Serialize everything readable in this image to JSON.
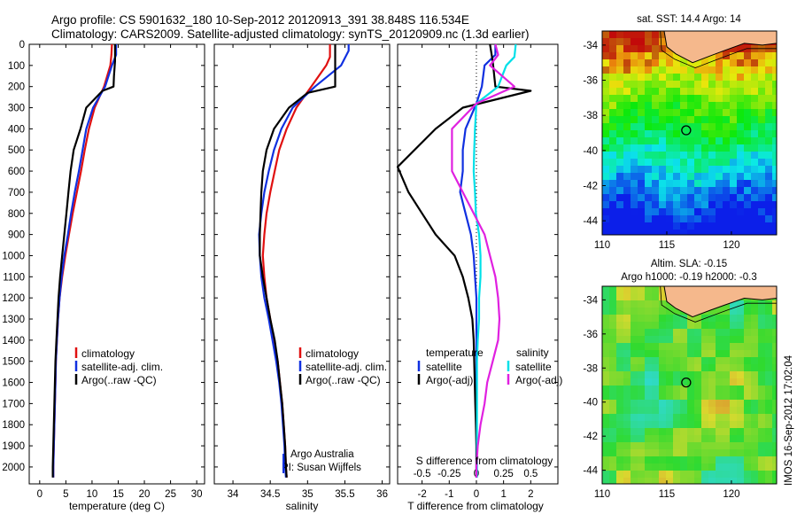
{
  "header": {
    "line1": "Argo profile: CS 5901632_180 10-Sep-2012 20120913_391 38.848S 116.534E",
    "line2": "Climatology: CARS2009. Satellite-adjusted climatology: synTS_20120909.nc (1.3d earlier)"
  },
  "colors": {
    "clim": "#e01010",
    "sat": "#1030e0",
    "argo": "#000000",
    "sat_s": "#00e0e8",
    "argo_s": "#e020e0"
  },
  "chart_data": [
    {
      "type": "line",
      "xlabel": "temperature (deg C)",
      "ylabel": "",
      "xlim": [
        -2,
        31.5
      ],
      "ylim": [
        2080,
        0
      ],
      "xticks": [
        0,
        5,
        10,
        15,
        20,
        25,
        30
      ],
      "yticks": [
        0,
        100,
        200,
        300,
        400,
        500,
        600,
        700,
        800,
        900,
        1000,
        1100,
        1200,
        1300,
        1400,
        1500,
        1600,
        1700,
        1800,
        1900,
        2000
      ],
      "legend": [
        "climatology",
        "satellite-adj. clim.",
        "Argo(..raw -QC)"
      ],
      "series": [
        {
          "name": "climatology",
          "color": "clim",
          "points": [
            [
              13.8,
              0
            ],
            [
              13.7,
              50
            ],
            [
              13.5,
              100
            ],
            [
              12.3,
              200
            ],
            [
              10.5,
              300
            ],
            [
              9.4,
              400
            ],
            [
              8.6,
              500
            ],
            [
              7.9,
              600
            ],
            [
              7.1,
              700
            ],
            [
              6.3,
              800
            ],
            [
              5.6,
              900
            ],
            [
              4.9,
              1000
            ],
            [
              4.3,
              1100
            ],
            [
              3.8,
              1200
            ],
            [
              3.5,
              1300
            ],
            [
              3.3,
              1400
            ],
            [
              3.1,
              1500
            ],
            [
              3.0,
              1600
            ],
            [
              2.9,
              1700
            ],
            [
              2.8,
              1800
            ],
            [
              2.7,
              1900
            ],
            [
              2.6,
              2000
            ],
            [
              2.6,
              2050
            ]
          ]
        },
        {
          "name": "satellite-adj. clim.",
          "color": "sat",
          "points": [
            [
              14.6,
              0
            ],
            [
              14.6,
              50
            ],
            [
              13.8,
              100
            ],
            [
              12.5,
              200
            ],
            [
              10.2,
              300
            ],
            [
              8.9,
              400
            ],
            [
              8.2,
              500
            ],
            [
              7.5,
              600
            ],
            [
              6.7,
              700
            ],
            [
              6.0,
              800
            ],
            [
              5.4,
              900
            ],
            [
              4.7,
              1000
            ],
            [
              4.2,
              1100
            ],
            [
              3.8,
              1200
            ],
            [
              3.5,
              1300
            ],
            [
              3.3,
              1400
            ],
            [
              3.1,
              1500
            ],
            [
              3.0,
              1600
            ],
            [
              2.9,
              1700
            ],
            [
              2.8,
              1800
            ],
            [
              2.7,
              1900
            ],
            [
              2.6,
              2000
            ],
            [
              2.6,
              2050
            ]
          ]
        },
        {
          "name": "Argo(..raw -QC)",
          "color": "argo",
          "points": [
            [
              14.4,
              0
            ],
            [
              14.4,
              80
            ],
            [
              14.2,
              150
            ],
            [
              14.1,
              200
            ],
            [
              12.0,
              220
            ],
            [
              8.9,
              300
            ],
            [
              7.8,
              400
            ],
            [
              6.5,
              500
            ],
            [
              5.9,
              600
            ],
            [
              5.5,
              700
            ],
            [
              5.1,
              800
            ],
            [
              4.7,
              900
            ],
            [
              4.3,
              1000
            ],
            [
              3.9,
              1100
            ],
            [
              3.6,
              1200
            ],
            [
              3.4,
              1300
            ],
            [
              3.2,
              1400
            ],
            [
              3.0,
              1500
            ],
            [
              2.9,
              1600
            ],
            [
              2.8,
              1700
            ],
            [
              2.7,
              1800
            ],
            [
              2.6,
              1900
            ],
            [
              2.5,
              2000
            ],
            [
              2.5,
              2050
            ]
          ]
        }
      ]
    },
    {
      "type": "line",
      "xlabel": "salinity",
      "xlim": [
        33.75,
        36.1
      ],
      "ylim": [
        2080,
        0
      ],
      "xticks": [
        34,
        34.5,
        35,
        35.5,
        36
      ],
      "legend": [
        "climatology",
        "satellite-adj. clim.",
        "Argo(..raw -QC)"
      ],
      "note": [
        "Argo Australia",
        "PI: Susan Wijffels"
      ],
      "series": [
        {
          "name": "climatology",
          "color": "clim",
          "points": [
            [
              35.3,
              0
            ],
            [
              35.3,
              60
            ],
            [
              35.25,
              100
            ],
            [
              35.05,
              200
            ],
            [
              34.85,
              300
            ],
            [
              34.72,
              400
            ],
            [
              34.62,
              500
            ],
            [
              34.56,
              600
            ],
            [
              34.5,
              700
            ],
            [
              34.45,
              800
            ],
            [
              34.42,
              900
            ],
            [
              34.4,
              1000
            ],
            [
              34.42,
              1100
            ],
            [
              34.45,
              1200
            ],
            [
              34.5,
              1300
            ],
            [
              34.55,
              1400
            ],
            [
              34.6,
              1500
            ],
            [
              34.63,
              1600
            ],
            [
              34.66,
              1700
            ],
            [
              34.68,
              1800
            ],
            [
              34.7,
              1900
            ],
            [
              34.71,
              2000
            ],
            [
              34.72,
              2050
            ]
          ]
        },
        {
          "name": "satellite-adj. clim.",
          "color": "sat",
          "points": [
            [
              35.55,
              0
            ],
            [
              35.55,
              30
            ],
            [
              35.45,
              100
            ],
            [
              35.1,
              200
            ],
            [
              34.8,
              300
            ],
            [
              34.65,
              400
            ],
            [
              34.55,
              500
            ],
            [
              34.48,
              600
            ],
            [
              34.42,
              700
            ],
            [
              34.38,
              800
            ],
            [
              34.35,
              900
            ],
            [
              34.36,
              1000
            ],
            [
              34.38,
              1100
            ],
            [
              34.42,
              1200
            ],
            [
              34.48,
              1300
            ],
            [
              34.53,
              1400
            ],
            [
              34.58,
              1500
            ],
            [
              34.62,
              1600
            ],
            [
              34.65,
              1700
            ],
            [
              34.67,
              1800
            ],
            [
              34.69,
              1900
            ],
            [
              34.7,
              2000
            ],
            [
              34.71,
              2050
            ]
          ]
        },
        {
          "name": "Argo(..raw -QC)",
          "color": "argo",
          "points": [
            [
              35.37,
              0
            ],
            [
              35.37,
              100
            ],
            [
              35.37,
              200
            ],
            [
              35.0,
              230
            ],
            [
              34.75,
              300
            ],
            [
              34.55,
              400
            ],
            [
              34.45,
              500
            ],
            [
              34.4,
              600
            ],
            [
              34.38,
              700
            ],
            [
              34.37,
              800
            ],
            [
              34.36,
              900
            ],
            [
              34.36,
              1000
            ],
            [
              34.4,
              1100
            ],
            [
              34.45,
              1200
            ],
            [
              34.5,
              1300
            ],
            [
              34.56,
              1400
            ],
            [
              34.6,
              1500
            ],
            [
              34.63,
              1600
            ],
            [
              34.66,
              1700
            ],
            [
              34.68,
              1800
            ],
            [
              34.7,
              1900
            ],
            [
              34.71,
              2000
            ],
            [
              34.72,
              2050
            ]
          ]
        }
      ]
    },
    {
      "type": "line",
      "xlabel": "T difference from climatology",
      "top_axis_label": "S difference from climatology",
      "xlim": [
        -2.9,
        3.0
      ],
      "ylim": [
        2080,
        0
      ],
      "xticks": [
        -2,
        -1,
        0,
        1,
        2
      ],
      "top_ticks": [
        -0.5,
        -0.25,
        0,
        0.25,
        0.5
      ],
      "top_tick_labels": [
        "-0.5",
        "-0.25",
        "0",
        "0.25",
        "0.5"
      ],
      "legend_t": [
        "temperature",
        "satellite",
        "Argo(-adj)"
      ],
      "legend_s": [
        "salinity",
        "satellite",
        "Argo(-adj)"
      ],
      "series": [
        {
          "name": "satellite",
          "color": "sat",
          "points": [
            [
              0.7,
              0
            ],
            [
              0.7,
              50
            ],
            [
              0.3,
              100
            ],
            [
              0.2,
              200
            ],
            [
              0.0,
              280
            ],
            [
              -0.4,
              400
            ],
            [
              -0.5,
              500
            ],
            [
              -0.5,
              600
            ],
            [
              -0.6,
              700
            ],
            [
              -0.4,
              800
            ],
            [
              -0.2,
              900
            ],
            [
              -0.1,
              1000
            ],
            [
              -0.05,
              1100
            ],
            [
              0,
              1200
            ],
            [
              0,
              1300
            ],
            [
              0,
              1400
            ],
            [
              0,
              1500
            ],
            [
              0,
              1600
            ],
            [
              0,
              1700
            ],
            [
              0,
              1800
            ],
            [
              0,
              1900
            ],
            [
              0,
              2000
            ],
            [
              0,
              2050
            ]
          ]
        },
        {
          "name": "Argo(-adj)",
          "color": "argo",
          "points": [
            [
              0.5,
              0
            ],
            [
              0.6,
              80
            ],
            [
              0.7,
              200
            ],
            [
              2.0,
              220
            ],
            [
              -0.5,
              300
            ],
            [
              -1.5,
              400
            ],
            [
              -2.9,
              580
            ],
            [
              -2.5,
              700
            ],
            [
              -2.0,
              800
            ],
            [
              -1.5,
              900
            ],
            [
              -0.8,
              1000
            ],
            [
              -0.5,
              1100
            ],
            [
              -0.3,
              1200
            ],
            [
              -0.15,
              1300
            ],
            [
              -0.1,
              1400
            ],
            [
              -0.08,
              1500
            ],
            [
              -0.06,
              1600
            ],
            [
              -0.04,
              1700
            ],
            [
              -0.02,
              1800
            ],
            [
              0,
              1900
            ],
            [
              0,
              2000
            ],
            [
              0,
              2050
            ]
          ]
        },
        {
          "name": "satellite (S)",
          "color": "sat_s",
          "points": [
            [
              1.45,
              0
            ],
            [
              1.4,
              60
            ],
            [
              1.1,
              100
            ],
            [
              0.8,
              200
            ],
            [
              0.0,
              280
            ],
            [
              -0.05,
              400
            ],
            [
              -0.08,
              500
            ],
            [
              -0.1,
              600
            ],
            [
              -0.05,
              700
            ],
            [
              -0.02,
              800
            ],
            [
              0.1,
              900
            ],
            [
              0.15,
              1000
            ],
            [
              0.15,
              1100
            ],
            [
              0.1,
              1200
            ],
            [
              0.1,
              1300
            ],
            [
              0.05,
              1400
            ],
            [
              0.02,
              1500
            ],
            [
              0.02,
              1600
            ],
            [
              0.02,
              1700
            ],
            [
              0.02,
              1800
            ],
            [
              0.02,
              1900
            ],
            [
              0.02,
              2000
            ],
            [
              0.02,
              2050
            ]
          ]
        },
        {
          "name": "Argo(-adj) (S)",
          "color": "argo_s",
          "points": [
            [
              0.7,
              0
            ],
            [
              0.8,
              50
            ],
            [
              0.5,
              100
            ],
            [
              1.4,
              200
            ],
            [
              0.0,
              280
            ],
            [
              -0.9,
              400
            ],
            [
              -0.9,
              600
            ],
            [
              -0.5,
              700
            ],
            [
              -0.1,
              800
            ],
            [
              0.3,
              900
            ],
            [
              0.5,
              1000
            ],
            [
              0.7,
              1100
            ],
            [
              0.8,
              1200
            ],
            [
              0.85,
              1300
            ],
            [
              0.8,
              1400
            ],
            [
              0.6,
              1500
            ],
            [
              0.4,
              1600
            ],
            [
              0.3,
              1700
            ],
            [
              0.15,
              1800
            ],
            [
              0.05,
              1900
            ],
            [
              0,
              2000
            ],
            [
              0,
              2050
            ]
          ]
        }
      ]
    },
    {
      "type": "heatmap",
      "title": "sat. SST: 14.4 Argo: 14",
      "xlim": [
        110,
        123.5
      ],
      "ylim": [
        -44.8,
        -33.2
      ],
      "xticks": [
        110,
        115,
        120
      ],
      "yticks": [
        -34,
        -36,
        -38,
        -40,
        -42,
        -44
      ],
      "marker": [
        116.5,
        -38.85
      ]
    },
    {
      "type": "heatmap",
      "title_lines": [
        "Altim. SLA: -0.15",
        "Argo h1000: -0.19 h2000: -0.3"
      ],
      "xlim": [
        110,
        123.5
      ],
      "ylim": [
        -44.8,
        -33.2
      ],
      "xticks": [
        110,
        115,
        120
      ],
      "yticks": [
        -34,
        -36,
        -38,
        -40,
        -42,
        -44
      ],
      "marker": [
        116.5,
        -38.85
      ]
    }
  ],
  "side_label": "IMOS 16-Sep-2012 17:02:04"
}
